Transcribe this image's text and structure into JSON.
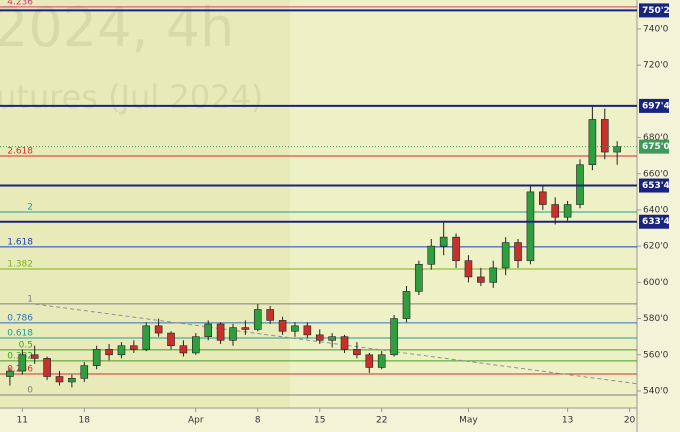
{
  "chart_data": {
    "type": "candlestick",
    "watermark": [
      "2024, 4h",
      "utures (Jul 2024)"
    ],
    "open": [
      548,
      551,
      560,
      558,
      548,
      545,
      547,
      554,
      563,
      560,
      565,
      563,
      576,
      572,
      565,
      561,
      570,
      577,
      568,
      575,
      574,
      585,
      579,
      573,
      576,
      571,
      568,
      570,
      563,
      560,
      553,
      560,
      580,
      595,
      610,
      620,
      625,
      612,
      603,
      600,
      608,
      622,
      612,
      650,
      643,
      636,
      643,
      665,
      690,
      672
    ],
    "high": [
      553,
      563,
      565,
      559,
      551,
      549,
      556,
      565,
      566,
      567,
      568,
      578,
      580,
      573,
      568,
      572,
      579,
      578,
      577,
      579,
      588,
      587,
      581,
      578,
      578,
      574,
      572,
      571,
      567,
      561,
      562,
      582,
      598,
      612,
      624,
      633,
      627,
      615,
      608,
      612,
      625,
      624,
      654,
      653,
      647,
      645,
      668,
      697,
      696,
      678
    ],
    "low": [
      543,
      549,
      555,
      546,
      543,
      542,
      545,
      552,
      557,
      558,
      561,
      562,
      570,
      563,
      559,
      560,
      568,
      566,
      565,
      571,
      573,
      577,
      571,
      570,
      569,
      566,
      564,
      561,
      558,
      550,
      552,
      559,
      578,
      593,
      607,
      615,
      608,
      600,
      598,
      597,
      604,
      608,
      610,
      640,
      632,
      634,
      641,
      662,
      668,
      665
    ],
    "close": [
      551,
      560,
      558,
      548,
      545,
      547,
      554,
      563,
      560,
      565,
      563,
      576,
      572,
      565,
      561,
      570,
      577,
      568,
      575,
      574,
      585,
      579,
      573,
      576,
      571,
      568,
      570,
      563,
      560,
      553,
      560,
      580,
      595,
      610,
      620,
      625,
      612,
      603,
      600,
      608,
      622,
      612,
      650,
      643,
      636,
      643,
      665,
      690,
      672,
      675
    ],
    "up_color": "#2e9e3e",
    "down_color": "#c8302c",
    "xlim": [
      -0.8,
      50.6
    ],
    "xticks": [
      {
        "value": 1,
        "label": "11"
      },
      {
        "value": 6,
        "label": "18"
      },
      {
        "value": 15,
        "label": "Apr"
      },
      {
        "value": 20,
        "label": "8"
      },
      {
        "value": 25,
        "label": "15"
      },
      {
        "value": 30,
        "label": "22"
      },
      {
        "value": 37,
        "label": "May"
      },
      {
        "value": 45,
        "label": "13"
      },
      {
        "value": 50,
        "label": "20"
      }
    ],
    "ylim": [
      530.6,
      756
    ],
    "yticks": [
      {
        "value": 540,
        "label": "540'0"
      },
      {
        "value": 560,
        "label": "560'0"
      },
      {
        "value": 580,
        "label": "580'0"
      },
      {
        "value": 600,
        "label": "600'0"
      },
      {
        "value": 620,
        "label": "620'0"
      },
      {
        "value": 640,
        "label": "640'0"
      },
      {
        "value": 660,
        "label": "660'0"
      },
      {
        "value": 680,
        "label": "680'0"
      },
      {
        "value": 720,
        "label": "720'0"
      },
      {
        "value": 740,
        "label": "740'0"
      }
    ],
    "fib_levels": [
      {
        "label": "4.236",
        "value": 752.2,
        "color": "#d04070"
      },
      {
        "label": "2.618",
        "value": 669.8,
        "color": "#d03030"
      },
      {
        "label": "2",
        "value": 638.9,
        "color": "#20a090"
      },
      {
        "label": "1.618",
        "value": 619.6,
        "color": "#2040c0"
      },
      {
        "label": "1.382",
        "value": 607.4,
        "color": "#80b020"
      },
      {
        "label": "1",
        "value": 588.1,
        "color": "#808080"
      },
      {
        "label": "0.786",
        "value": 577.6,
        "color": "#3070c0"
      },
      {
        "label": "0.618",
        "value": 569.3,
        "color": "#20a090"
      },
      {
        "label": "0.5",
        "value": 562.7,
        "color": "#40a020"
      },
      {
        "label": "0.382",
        "value": 556.6,
        "color": "#40a020"
      },
      {
        "label": "0.236",
        "value": 549.4,
        "color": "#d03030"
      },
      {
        "label": "0",
        "value": 537.8,
        "color": "#808080"
      }
    ],
    "price_levels": [
      {
        "value": 750.25,
        "label": "750'2"
      },
      {
        "value": 697.5,
        "label": "697'4"
      },
      {
        "value": 653.5,
        "label": "653'4"
      },
      {
        "value": 633.5,
        "label": "633'4"
      }
    ],
    "level_color": "#1a237e",
    "last_price": {
      "value": 675,
      "label": "675'0",
      "color": "#3d9a5a"
    },
    "trendline": {
      "x": [
        2.05,
        50.6
      ],
      "y": [
        588,
        544
      ],
      "color": "#909090"
    }
  }
}
